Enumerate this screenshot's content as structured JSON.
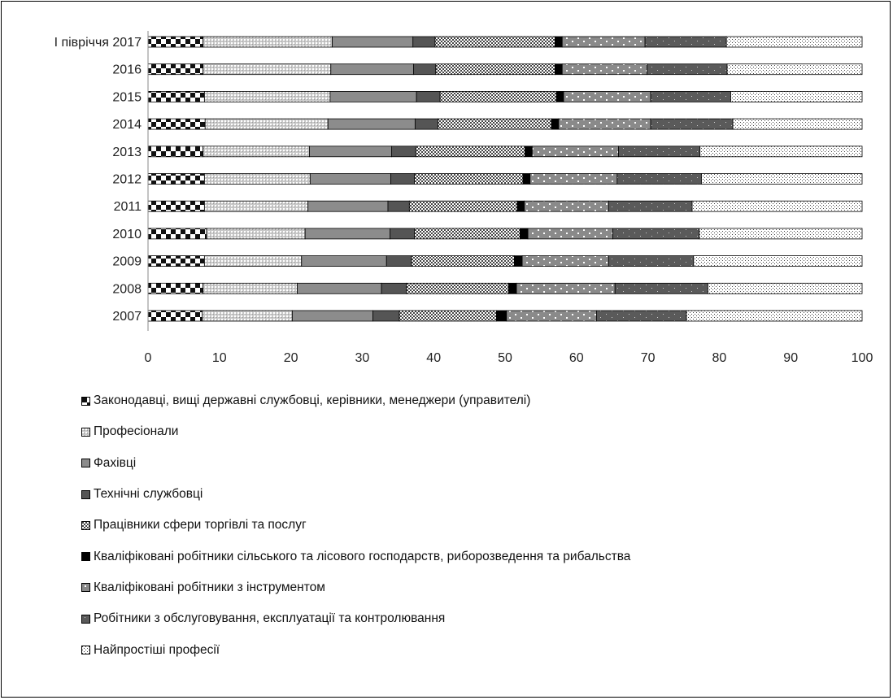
{
  "chart_data": {
    "type": "bar",
    "orientation": "horizontal",
    "stacked": true,
    "categories": [
      "І півріччя 2017",
      "2016",
      "2015",
      "2014",
      "2013",
      "2012",
      "2011",
      "2010",
      "2009",
      "2008",
      "2007"
    ],
    "series": [
      {
        "name": "Законодавці, вищі державні службовці, керівники, менеджери (управителі)",
        "pattern": "checker",
        "values": [
          7.7,
          7.7,
          7.9,
          8.0,
          7.7,
          7.9,
          7.9,
          8.2,
          7.9,
          7.7,
          7.6
        ]
      },
      {
        "name": "Професіонали",
        "pattern": "dots-light",
        "values": [
          18.1,
          17.9,
          17.6,
          17.2,
          14.9,
          14.8,
          14.5,
          13.8,
          13.6,
          13.2,
          12.6
        ]
      },
      {
        "name": "Фахівці",
        "pattern": "solid-gray",
        "values": [
          11.3,
          11.6,
          12.1,
          12.2,
          11.5,
          11.3,
          11.2,
          11.9,
          11.9,
          11.8,
          11.3
        ]
      },
      {
        "name": "Технічні службовці",
        "pattern": "solid-dark",
        "values": [
          3.1,
          3.1,
          3.3,
          3.2,
          3.4,
          3.3,
          3.0,
          3.4,
          3.5,
          3.5,
          3.7
        ]
      },
      {
        "name": "Працівники сфери торгівлі та послуг",
        "pattern": "checker-fine",
        "values": [
          16.8,
          16.7,
          16.3,
          15.9,
          15.3,
          15.2,
          15.1,
          14.8,
          14.4,
          14.3,
          13.6
        ]
      },
      {
        "name": "Кваліфіковані робітники сільського та лісового господарств, риборозведення та рибальства",
        "pattern": "solid-black",
        "values": [
          1.0,
          1.0,
          1.0,
          1.0,
          1.0,
          1.0,
          1.0,
          1.1,
          1.1,
          1.1,
          1.4
        ]
      },
      {
        "name": "Кваліфіковані робітники з інструментом",
        "pattern": "gray-sparse-dots",
        "values": [
          11.6,
          11.9,
          12.2,
          12.9,
          12.1,
          12.2,
          11.8,
          11.9,
          12.1,
          13.8,
          12.6
        ]
      },
      {
        "name": "Робітники з обслуговування, експлуатації та контролювання",
        "pattern": "dark-sparse-dots",
        "values": [
          11.4,
          11.2,
          11.2,
          11.5,
          11.4,
          11.8,
          11.7,
          12.1,
          11.9,
          13.0,
          12.6
        ]
      },
      {
        "name": "Найпростіші професії",
        "pattern": "fine-dots",
        "values": [
          19.0,
          18.9,
          18.4,
          18.1,
          22.7,
          22.5,
          23.8,
          22.8,
          23.6,
          21.6,
          24.6
        ]
      }
    ],
    "x_ticks": [
      0,
      10,
      20,
      30,
      40,
      50,
      60,
      70,
      80,
      90,
      100
    ],
    "xlim": [
      0,
      100
    ],
    "grid": false,
    "legend_position": "bottom"
  }
}
